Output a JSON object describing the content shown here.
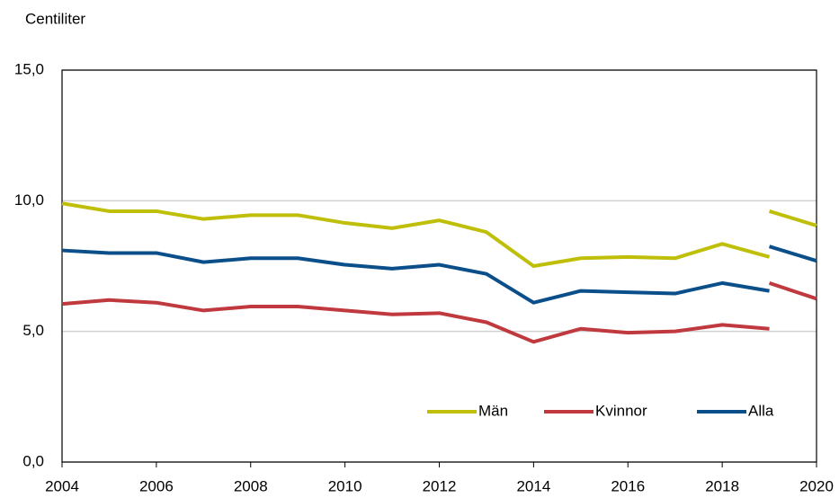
{
  "chart_data": {
    "type": "line",
    "y_label": "Centiliter",
    "x": [
      2004,
      2005,
      2006,
      2007,
      2008,
      2009,
      2010,
      2011,
      2012,
      2013,
      2014,
      2015,
      2016,
      2017,
      2018,
      2019,
      null,
      2019,
      2020
    ],
    "series": [
      {
        "name": "Män",
        "color": "#bfbf0a",
        "values": [
          9.9,
          9.6,
          9.6,
          9.3,
          9.45,
          9.45,
          9.15,
          8.95,
          9.25,
          8.8,
          7.5,
          7.8,
          7.85,
          7.8,
          8.35,
          7.85,
          null,
          9.6,
          9.05
        ]
      },
      {
        "name": "Kvinnor",
        "color": "#c0393f",
        "values": [
          6.05,
          6.2,
          6.1,
          5.8,
          5.95,
          5.95,
          5.8,
          5.65,
          5.7,
          5.35,
          4.6,
          5.1,
          4.95,
          5.0,
          5.25,
          5.1,
          null,
          6.85,
          6.25
        ]
      },
      {
        "name": "Alla",
        "color": "#0b4f8a",
        "values": [
          8.1,
          8.0,
          8.0,
          7.65,
          7.8,
          7.8,
          7.55,
          7.4,
          7.55,
          7.2,
          6.1,
          6.55,
          6.5,
          6.45,
          6.85,
          6.55,
          null,
          8.25,
          7.7
        ]
      }
    ],
    "xlim": [
      2004,
      2020
    ],
    "xticks": [
      2004,
      2006,
      2008,
      2010,
      2012,
      2014,
      2016,
      2018,
      2020
    ],
    "ylim": [
      0,
      15
    ],
    "yticks": [
      {
        "value": 0,
        "label": "0,0"
      },
      {
        "value": 5,
        "label": "5,0"
      },
      {
        "value": 10,
        "label": "10,0"
      },
      {
        "value": 15,
        "label": "15,0"
      }
    ],
    "grid": true,
    "legend": "lower-right"
  }
}
